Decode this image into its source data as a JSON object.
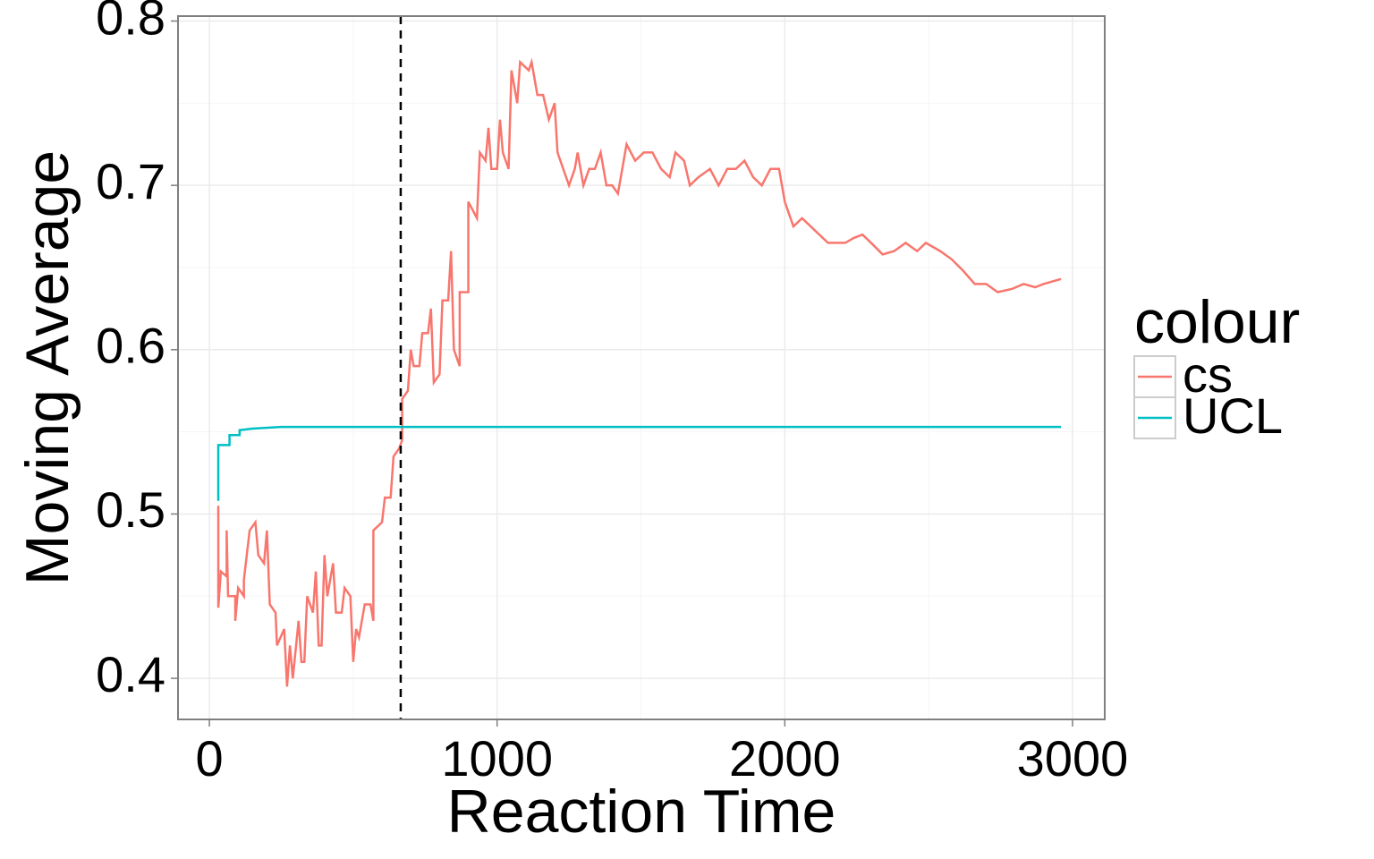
{
  "chart_data": {
    "type": "line",
    "x_label": "Reaction Time",
    "y_label": "Moving Average",
    "legend_title": "colour",
    "legend": "right",
    "grid": true,
    "xlim": [
      -109,
      3112
    ],
    "ylim": [
      0.375,
      0.803
    ],
    "xticks": [
      0,
      1000,
      2000,
      3000
    ],
    "yticks": [
      0.4,
      0.5,
      0.6,
      0.7,
      0.8
    ],
    "vline": 665,
    "series": [
      {
        "name": "cs",
        "color": "#F8766D",
        "x": [
          31,
          31,
          40,
          60,
          60,
          65,
          90,
          90,
          100,
          120,
          120,
          140,
          160,
          170,
          190,
          200,
          210,
          230,
          235,
          260,
          270,
          280,
          290,
          310,
          320,
          330,
          340,
          360,
          370,
          380,
          390,
          400,
          410,
          430,
          440,
          460,
          470,
          490,
          500,
          510,
          520,
          540,
          560,
          570,
          570,
          600,
          610,
          630,
          640,
          660,
          670,
          670,
          690,
          700,
          710,
          730,
          740,
          760,
          770,
          780,
          800,
          810,
          830,
          840,
          850,
          870,
          870,
          900,
          900,
          930,
          940,
          960,
          970,
          980,
          1000,
          1010,
          1020,
          1030,
          1040,
          1050,
          1070,
          1080,
          1110,
          1120,
          1140,
          1160,
          1180,
          1200,
          1210,
          1230,
          1250,
          1270,
          1280,
          1300,
          1320,
          1340,
          1360,
          1380,
          1400,
          1420,
          1450,
          1480,
          1510,
          1540,
          1570,
          1600,
          1620,
          1650,
          1670,
          1700,
          1740,
          1770,
          1800,
          1830,
          1860,
          1890,
          1920,
          1950,
          1980,
          2000,
          2030,
          2060,
          2090,
          2120,
          2150,
          2180,
          2210,
          2240,
          2270,
          2300,
          2340,
          2380,
          2420,
          2460,
          2490,
          2540,
          2580,
          2620,
          2660,
          2700,
          2740,
          2790,
          2830,
          2870,
          2900,
          2960
        ],
        "values": [
          0.505,
          0.443,
          0.465,
          0.462,
          0.49,
          0.45,
          0.45,
          0.435,
          0.455,
          0.45,
          0.46,
          0.49,
          0.495,
          0.475,
          0.47,
          0.49,
          0.445,
          0.44,
          0.42,
          0.43,
          0.395,
          0.42,
          0.4,
          0.435,
          0.41,
          0.41,
          0.45,
          0.44,
          0.465,
          0.42,
          0.42,
          0.475,
          0.45,
          0.47,
          0.44,
          0.44,
          0.455,
          0.45,
          0.41,
          0.43,
          0.425,
          0.445,
          0.445,
          0.435,
          0.49,
          0.495,
          0.51,
          0.51,
          0.535,
          0.54,
          0.545,
          0.57,
          0.575,
          0.6,
          0.59,
          0.59,
          0.61,
          0.61,
          0.625,
          0.58,
          0.585,
          0.63,
          0.63,
          0.66,
          0.6,
          0.59,
          0.635,
          0.635,
          0.69,
          0.68,
          0.72,
          0.715,
          0.735,
          0.71,
          0.71,
          0.74,
          0.72,
          0.715,
          0.71,
          0.77,
          0.75,
          0.775,
          0.77,
          0.775,
          0.755,
          0.755,
          0.74,
          0.75,
          0.72,
          0.71,
          0.7,
          0.71,
          0.72,
          0.7,
          0.71,
          0.71,
          0.72,
          0.7,
          0.7,
          0.695,
          0.725,
          0.715,
          0.72,
          0.72,
          0.71,
          0.705,
          0.72,
          0.715,
          0.7,
          0.705,
          0.71,
          0.7,
          0.71,
          0.71,
          0.715,
          0.705,
          0.7,
          0.71,
          0.71,
          0.69,
          0.675,
          0.68,
          0.675,
          0.67,
          0.665,
          0.665,
          0.665,
          0.668,
          0.67,
          0.665,
          0.658,
          0.66,
          0.665,
          0.66,
          0.665,
          0.66,
          0.655,
          0.648,
          0.64,
          0.64,
          0.635,
          0.637,
          0.64,
          0.638,
          0.64,
          0.643
        ]
      },
      {
        "name": "UCL",
        "color": "#00BFC4",
        "x": [
          31,
          31,
          70,
          70,
          105,
          105,
          150,
          250,
          2960
        ],
        "values": [
          0.508,
          0.542,
          0.542,
          0.548,
          0.548,
          0.551,
          0.552,
          0.553,
          0.553
        ]
      }
    ]
  }
}
